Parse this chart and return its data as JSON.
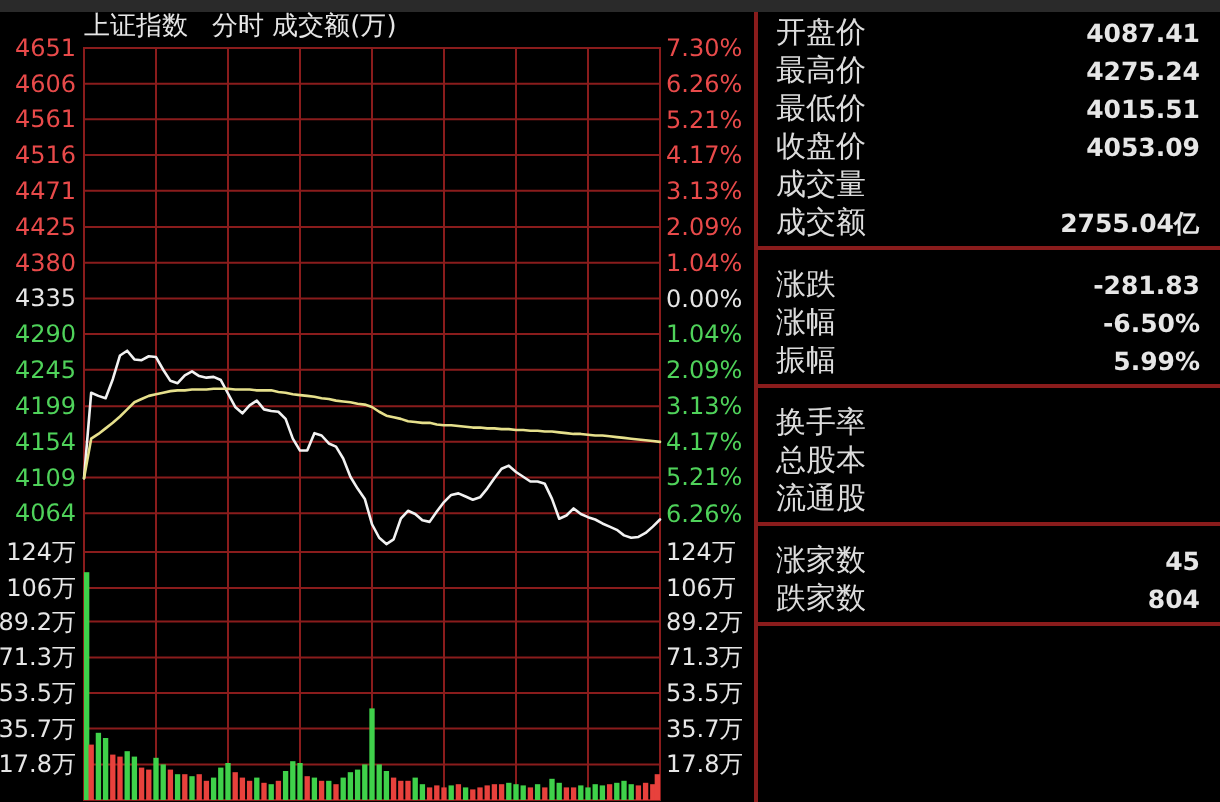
{
  "chart_data": [
    {
      "type": "line",
      "title": "上证指数",
      "subtitle": "分时 成交额(万)",
      "grid": true,
      "tick_labels": "y",
      "categories": [
        null,
        null,
        null,
        null,
        null,
        null,
        null,
        null,
        null,
        null,
        null,
        null,
        null,
        null,
        null,
        null,
        null,
        null,
        null,
        null,
        null,
        null,
        null,
        null,
        null,
        null,
        null,
        null,
        null,
        null,
        null,
        null,
        null,
        null,
        null,
        null,
        null,
        null,
        null,
        null,
        null,
        null,
        null,
        null,
        null,
        null,
        null,
        null,
        null,
        null,
        null,
        null,
        null,
        null,
        null,
        null,
        null,
        null,
        null,
        null,
        null,
        null,
        null,
        null,
        null,
        null,
        null,
        null,
        null,
        null,
        null,
        null,
        null,
        null,
        null,
        null,
        null,
        null,
        null,
        null,
        null
      ],
      "ylim": [
        4015,
        4651
      ],
      "yticks": [
        4651,
        4606,
        4561,
        4516,
        4471,
        4425,
        4380,
        4335,
        4290,
        4245,
        4199,
        4154,
        4109,
        4064
      ],
      "y2lim": [
        -7.38,
        7.3
      ],
      "y2ticks": [
        {
          "value": 7.3,
          "label": "7.30%"
        },
        {
          "value": 6.26,
          "label": "6.26%"
        },
        {
          "value": 5.21,
          "label": "5.21%"
        },
        {
          "value": 4.17,
          "label": "4.17%"
        },
        {
          "value": 3.13,
          "label": "3.13%"
        },
        {
          "value": 2.09,
          "label": "2.09%"
        },
        {
          "value": 1.04,
          "label": "1.04%"
        },
        {
          "value": 0,
          "label": "0.00%"
        },
        {
          "value": -1.04,
          "label": "1.04%"
        },
        {
          "value": -2.09,
          "label": "2.09%"
        },
        {
          "value": -3.13,
          "label": "3.13%"
        },
        {
          "value": -4.17,
          "label": "4.17%"
        },
        {
          "value": -5.21,
          "label": "5.21%"
        },
        {
          "value": -6.26,
          "label": "6.26%"
        }
      ],
      "series": [
        {
          "color": "#f2f2f2",
          "values": [
            4108,
            4216,
            4212,
            4209,
            4233,
            4263,
            4269,
            4258,
            4257,
            4262,
            4261,
            4245,
            4231,
            4228,
            4238,
            4243,
            4237,
            4235,
            4236,
            4232,
            4215,
            4198,
            4190,
            4200,
            4206,
            4195,
            4193,
            4192,
            4183,
            4158,
            4143,
            4143,
            4165,
            4162,
            4152,
            4148,
            4133,
            4110,
            4095,
            4082,
            4050,
            4033,
            4025,
            4031,
            4057,
            4067,
            4063,
            4055,
            4053,
            4066,
            4078,
            4087,
            4089,
            4085,
            4081,
            4084,
            4095,
            4108,
            4120,
            4124,
            4116,
            4110,
            4104,
            4104,
            4101,
            4082,
            4057,
            4061,
            4070,
            4063,
            4059,
            4056,
            4051,
            4047,
            4043,
            4036,
            4033,
            4034,
            4039,
            4047,
            4056
          ]
        },
        {
          "color": "#e6e08c",
          "values": [
            4108,
            4158,
            4164,
            4171,
            4178,
            4186,
            4195,
            4204,
            4208,
            4212,
            4214,
            4216,
            4218,
            4219,
            4219,
            4220,
            4220,
            4220,
            4221,
            4221,
            4221,
            4220,
            4220,
            4220,
            4219,
            4219,
            4219,
            4217,
            4216,
            4214,
            4213,
            4212,
            4211,
            4209,
            4208,
            4206,
            4205,
            4204,
            4202,
            4201,
            4198,
            4192,
            4187,
            4185,
            4183,
            4180,
            4179,
            4178,
            4178,
            4176,
            4175,
            4175,
            4174,
            4173,
            4172,
            4172,
            4171,
            4171,
            4170,
            4170,
            4169,
            4169,
            4168,
            4168,
            4167,
            4167,
            4166,
            4165,
            4164,
            4164,
            4163,
            4162,
            4162,
            4161,
            4160,
            4159,
            4158,
            4157,
            4156,
            4155,
            4154
          ]
        }
      ]
    },
    {
      "type": "bar",
      "grid": true,
      "tick_labels": "y",
      "categories": [
        null,
        null,
        null,
        null,
        null,
        null,
        null,
        null,
        null,
        null,
        null,
        null,
        null,
        null,
        null,
        null,
        null,
        null,
        null,
        null,
        null,
        null,
        null,
        null,
        null,
        null,
        null,
        null,
        null,
        null,
        null,
        null,
        null,
        null,
        null,
        null,
        null,
        null,
        null,
        null,
        null,
        null,
        null,
        null,
        null,
        null,
        null,
        null,
        null,
        null,
        null,
        null,
        null,
        null,
        null,
        null,
        null,
        null,
        null,
        null,
        null,
        null,
        null,
        null,
        null,
        null,
        null,
        null,
        null,
        null,
        null,
        null,
        null,
        null,
        null,
        null,
        null,
        null,
        null,
        null,
        null
      ],
      "ylim": [
        0,
        124
      ],
      "yticks": [
        {
          "value": 124,
          "label": "124万"
        },
        {
          "value": 106,
          "label": "106万"
        },
        {
          "value": 89.2,
          "label": "89.2万"
        },
        {
          "value": 71.3,
          "label": "71.3万"
        },
        {
          "value": 53.5,
          "label": "53.5万"
        },
        {
          "value": 35.7,
          "label": "35.7万"
        },
        {
          "value": 17.8,
          "label": "17.8万"
        }
      ],
      "y2lim": [
        0,
        124
      ],
      "y2ticks": [
        {
          "value": 124,
          "label": "124万"
        },
        {
          "value": 106,
          "label": "106万"
        },
        {
          "value": 89.2,
          "label": "89.2万"
        },
        {
          "value": 71.3,
          "label": "71.3万"
        },
        {
          "value": 53.5,
          "label": "53.5万"
        },
        {
          "value": 35.7,
          "label": "35.7万"
        },
        {
          "value": 17.8,
          "label": "17.8万"
        }
      ],
      "values": [
        113.9,
        27.7,
        33.6,
        31,
        22.7,
        21.7,
        24.4,
        21.7,
        16.2,
        15.2,
        21.1,
        17.8,
        15.2,
        12.9,
        12.9,
        11.9,
        12.9,
        9.6,
        11.2,
        16.2,
        18.5,
        13.9,
        11.2,
        9.6,
        11.2,
        8.6,
        7.9,
        9.6,
        14.5,
        19.4,
        18.5,
        11.9,
        11.2,
        9.6,
        9.6,
        7.9,
        11.2,
        13.9,
        15.2,
        17.8,
        45.8,
        17.8,
        14.5,
        11.2,
        9.6,
        9.6,
        11.2,
        7.9,
        6.3,
        7.3,
        6.3,
        7.3,
        7.9,
        6.3,
        5.3,
        6.3,
        7.3,
        7.9,
        7.9,
        8.6,
        7.9,
        7.3,
        6.3,
        7.9,
        6.3,
        10.6,
        8.6,
        6.3,
        6.3,
        7.3,
        6.3,
        7.9,
        7.3,
        7.9,
        8.6,
        9.6,
        7.9,
        7.3,
        8.6,
        7.9,
        12.9
      ],
      "colors": [
        "#3fd14a",
        "#e8413c",
        "#3fd14a",
        "#3fd14a",
        "#e8413c",
        "#e8413c",
        "#3fd14a",
        "#3fd14a",
        "#e8413c",
        "#e8413c",
        "#3fd14a",
        "#3fd14a",
        "#e8413c",
        "#3fd14a",
        "#e8413c",
        "#3fd14a",
        "#e8413c",
        "#e8413c",
        "#3fd14a",
        "#3fd14a",
        "#3fd14a",
        "#e8413c",
        "#e8413c",
        "#e8413c",
        "#3fd14a",
        "#e8413c",
        "#3fd14a",
        "#e8413c",
        "#3fd14a",
        "#3fd14a",
        "#3fd14a",
        "#e8413c",
        "#3fd14a",
        "#e8413c",
        "#3fd14a",
        "#e8413c",
        "#3fd14a",
        "#3fd14a",
        "#3fd14a",
        "#3fd14a",
        "#3fd14a",
        "#3fd14a",
        "#3fd14a",
        "#e8413c",
        "#e8413c",
        "#e8413c",
        "#3fd14a",
        "#3fd14a",
        "#e8413c",
        "#e8413c",
        "#e8413c",
        "#3fd14a",
        "#e8413c",
        "#3fd14a",
        "#e8413c",
        "#e8413c",
        "#e8413c",
        "#e8413c",
        "#e8413c",
        "#3fd14a",
        "#3fd14a",
        "#3fd14a",
        "#e8413c",
        "#3fd14a",
        "#e8413c",
        "#3fd14a",
        "#3fd14a",
        "#e8413c",
        "#e8413c",
        "#3fd14a",
        "#3fd14a",
        "#3fd14a",
        "#3fd14a",
        "#e8413c",
        "#3fd14a",
        "#3fd14a",
        "#3fd14a",
        "#e8413c",
        "#e8413c",
        "#e8413c",
        "#e8413c"
      ]
    },
    {
      "type": "other",
      "categories": [
        "开盘价",
        "最高价",
        "最低价",
        "收盘价",
        "成交量",
        "成交额"
      ],
      "value_labels": [
        "4087.41",
        "4275.24",
        "4015.51",
        "4053.09",
        null,
        "2755.04亿"
      ]
    },
    {
      "type": "other",
      "categories": [
        "涨跌",
        "涨幅",
        "振幅"
      ],
      "value_labels": [
        "-281.83",
        "-6.50%",
        "5.99%"
      ]
    },
    {
      "type": "other",
      "categories": [
        "换手率",
        "总股本",
        "流通股"
      ],
      "value_labels": [
        null,
        null,
        null
      ]
    },
    {
      "type": "other",
      "categories": [
        "涨家数",
        "跌家数"
      ],
      "value_labels": [
        "45",
        "804"
      ]
    }
  ]
}
